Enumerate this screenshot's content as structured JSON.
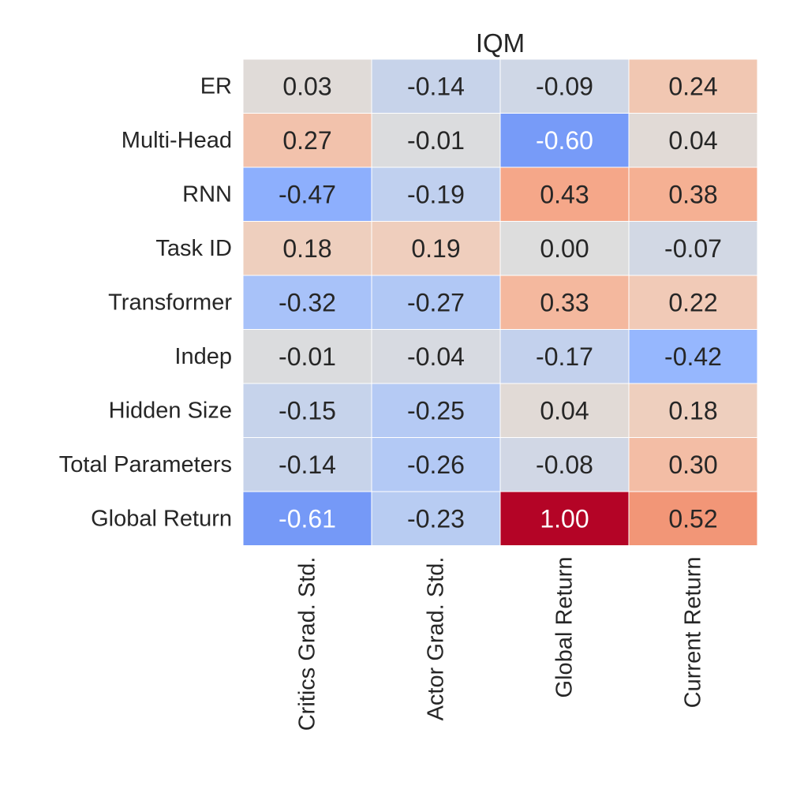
{
  "chart_data": {
    "type": "heatmap",
    "title": "IQM",
    "rows": [
      "ER",
      "Multi-Head",
      "RNN",
      "Task ID",
      "Transformer",
      "Indep",
      "Hidden Size",
      "Total Parameters",
      "Global Return"
    ],
    "columns": [
      "Critics Grad. Std.",
      "Actor Grad. Std.",
      "Global Return",
      "Current Return"
    ],
    "values": [
      [
        0.03,
        -0.14,
        -0.09,
        0.24
      ],
      [
        0.27,
        -0.01,
        -0.6,
        0.04
      ],
      [
        -0.47,
        -0.19,
        0.43,
        0.38
      ],
      [
        0.18,
        0.19,
        0.0,
        -0.07
      ],
      [
        -0.32,
        -0.27,
        0.33,
        0.22
      ],
      [
        -0.01,
        -0.04,
        -0.17,
        -0.42
      ],
      [
        -0.15,
        -0.25,
        0.04,
        0.18
      ],
      [
        -0.14,
        -0.26,
        -0.08,
        0.3
      ],
      [
        -0.61,
        -0.23,
        1.0,
        0.52
      ]
    ],
    "value_labels": [
      [
        "0.03",
        "-0.14",
        "-0.09",
        "0.24"
      ],
      [
        "0.27",
        "-0.01",
        "-0.60",
        "0.04"
      ],
      [
        "-0.47",
        "-0.19",
        "0.43",
        "0.38"
      ],
      [
        "0.18",
        "0.19",
        "0.00",
        "-0.07"
      ],
      [
        "-0.32",
        "-0.27",
        "0.33",
        "0.22"
      ],
      [
        "-0.01",
        "-0.04",
        "-0.17",
        "-0.42"
      ],
      [
        "-0.15",
        "-0.25",
        "0.04",
        "0.18"
      ],
      [
        "-0.14",
        "-0.26",
        "-0.08",
        "0.30"
      ],
      [
        "-0.61",
        "-0.23",
        "1.00",
        "0.52"
      ]
    ],
    "colormap": "coolwarm",
    "vmin": -1,
    "vmax": 1,
    "colorbar": false,
    "grid": false
  }
}
